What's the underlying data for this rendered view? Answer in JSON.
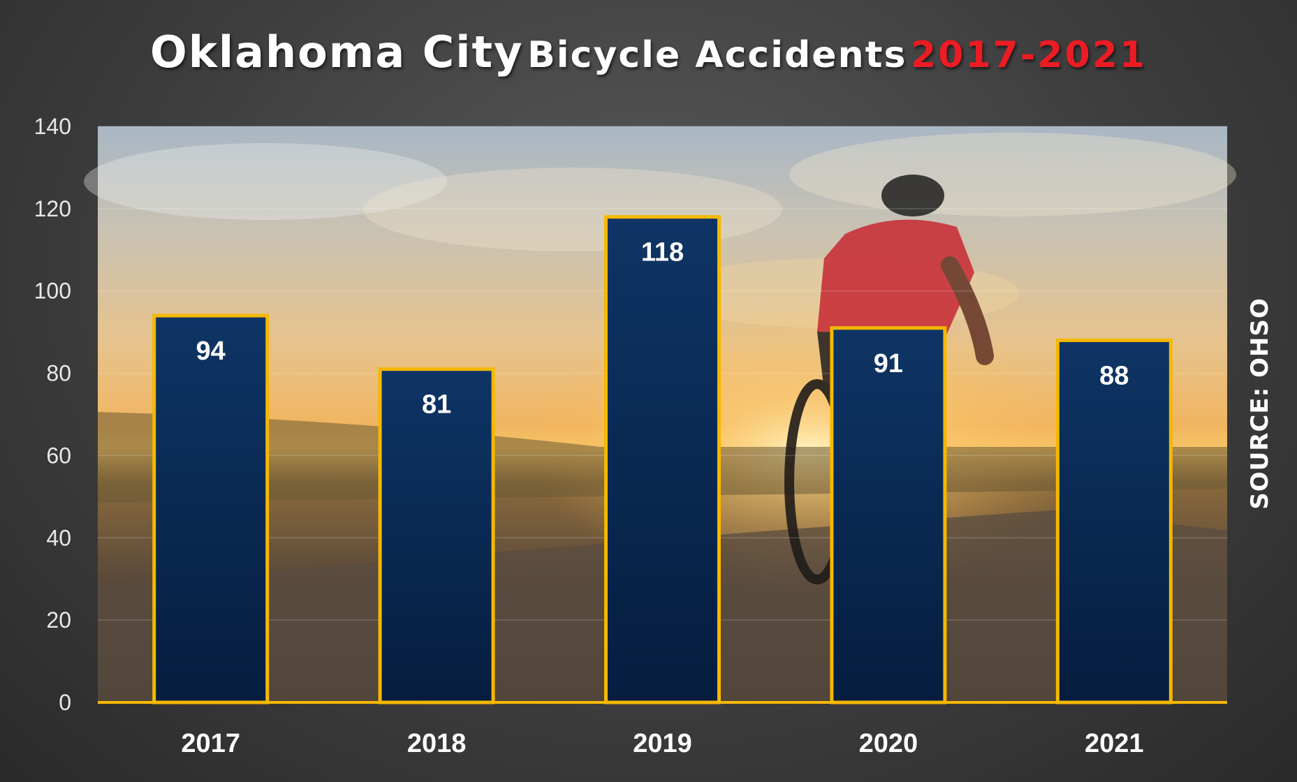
{
  "chart_data": {
    "type": "bar",
    "title": {
      "part1": "Oklahoma City",
      "part2": "Bicycle Accidents",
      "part3": "2017-2021"
    },
    "categories": [
      "2017",
      "2018",
      "2019",
      "2020",
      "2021"
    ],
    "values": [
      94,
      81,
      118,
      91,
      88
    ],
    "ylim": [
      0,
      140
    ],
    "yticks": [
      0,
      20,
      40,
      60,
      80,
      100,
      120,
      140
    ],
    "source": "SOURCE: OHSO",
    "grid": true,
    "colors": {
      "bar_fill_top": "#0e3566",
      "bar_fill_bottom": "#061d3e",
      "bar_border": "#f5b800",
      "title_accent": "#ec1c24",
      "baseline": "#f5b800"
    }
  }
}
